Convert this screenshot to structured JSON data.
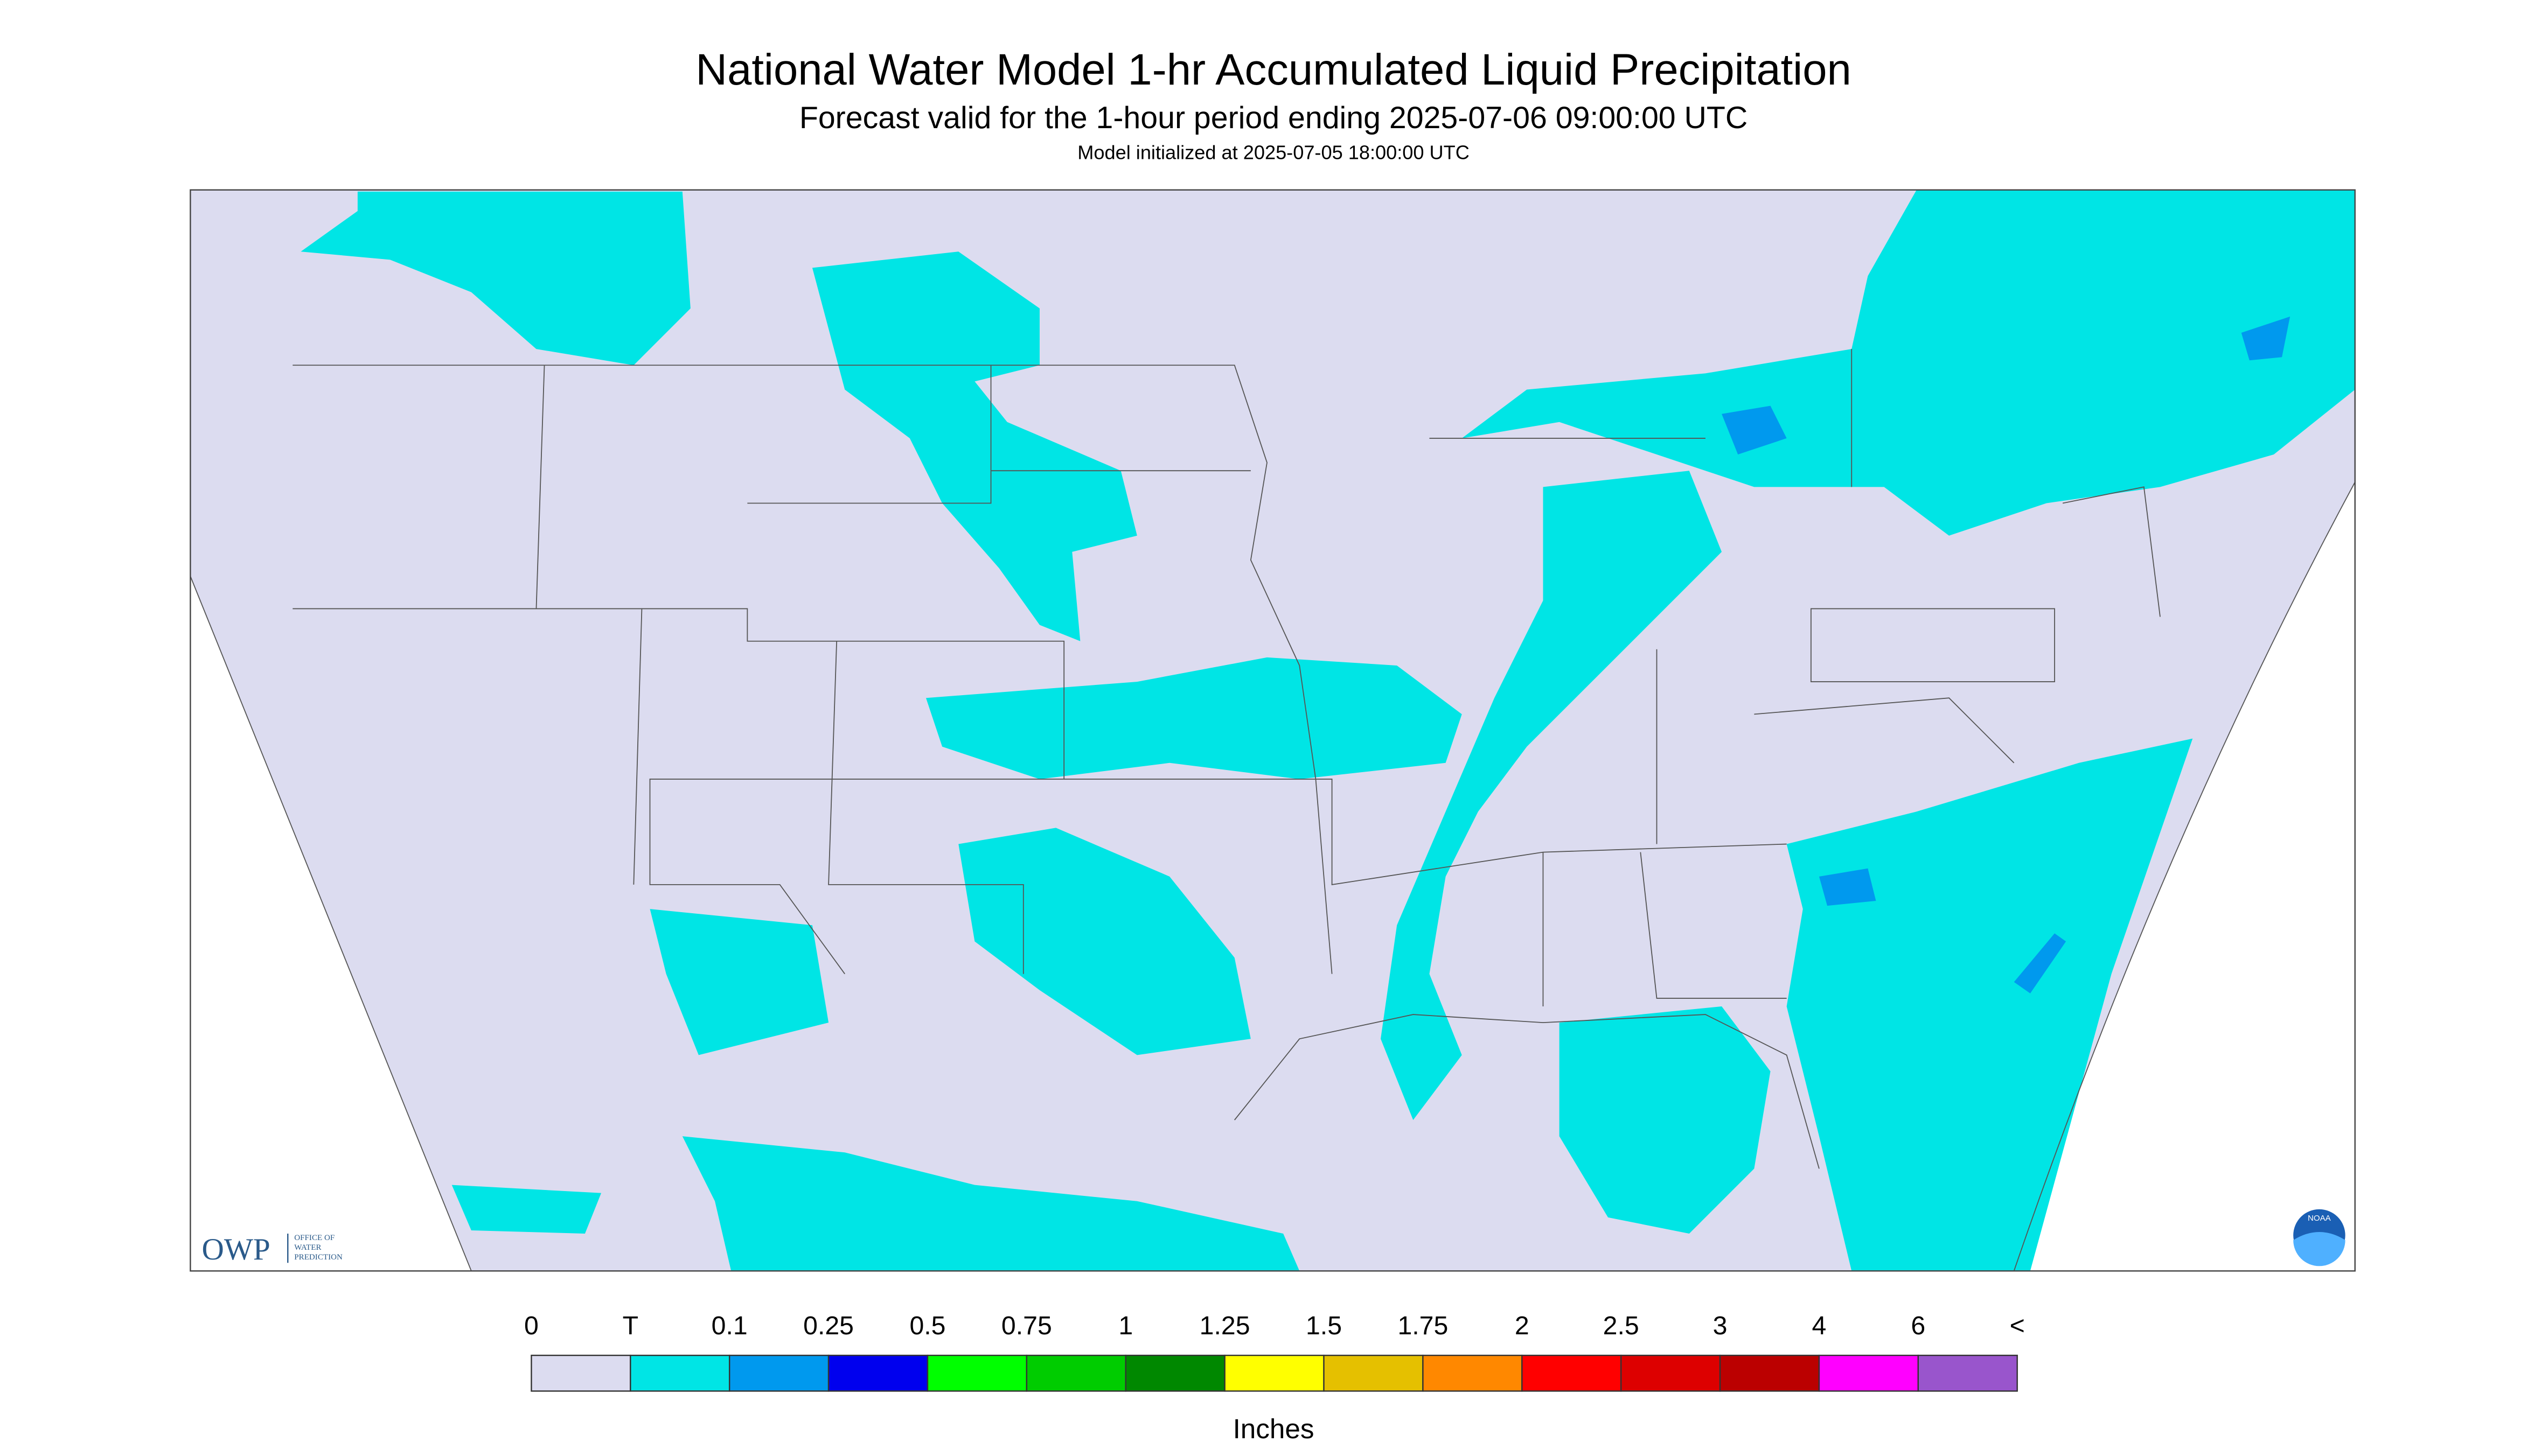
{
  "header": {
    "title": "National Water Model 1-hr Accumulated Liquid Precipitation",
    "subtitle": "Forecast valid for the 1-hour period ending 2025-07-06 09:00:00 UTC",
    "initialized": "Model initialized at 2025-07-05 18:00:00 UTC"
  },
  "legend": {
    "labels": [
      "0",
      "T",
      "0.1",
      "0.25",
      "0.5",
      "0.75",
      "1",
      "1.25",
      "1.5",
      "1.75",
      "2",
      "2.5",
      "3",
      "4",
      "6",
      "<"
    ],
    "colors": [
      "#dcdcf0",
      "#00e5e5",
      "#0099ee",
      "#0000ee",
      "#00ff00",
      "#00cc00",
      "#008800",
      "#ffff00",
      "#e5c000",
      "#ff8800",
      "#ff0000",
      "#dd0000",
      "#bb0000",
      "#ff00ff",
      "#9955cc"
    ],
    "unit": "Inches"
  },
  "logos": {
    "owp": "OWP",
    "owp_name": [
      "OFFICE OF",
      "WATER",
      "PREDICTION"
    ],
    "noaa": "NOAA"
  }
}
